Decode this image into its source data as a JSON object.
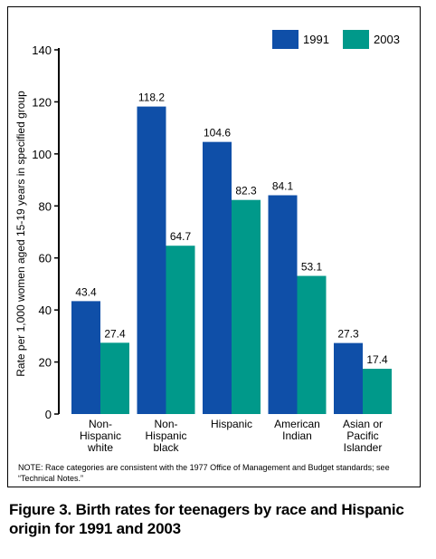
{
  "chart_data": {
    "type": "bar",
    "categories": [
      [
        "Non-",
        "Hispanic",
        "white"
      ],
      [
        "Non-",
        "Hispanic",
        "black"
      ],
      [
        "Hispanic"
      ],
      [
        "American",
        "Indian"
      ],
      [
        "Asian or",
        "Pacific",
        "Islander"
      ]
    ],
    "series": [
      {
        "name": "1991",
        "color": "#0f4fa8",
        "values": [
          43.4,
          118.2,
          104.6,
          84.1,
          27.3
        ]
      },
      {
        "name": "2003",
        "color": "#00998a",
        "values": [
          27.4,
          64.7,
          82.3,
          53.1,
          17.4
        ]
      }
    ],
    "ylabel": "Rate per 1,000 women aged 15-19 years in specified group",
    "ylim": [
      0,
      140
    ],
    "yticks": [
      0,
      20,
      40,
      60,
      80,
      100,
      120,
      140
    ],
    "legend_position": "top-right",
    "grid": false
  },
  "note": "NOTE: Race categories are consistent with the 1977 Office of Management and Budget standards; see “Technical Notes.”",
  "caption": "Figure 3. Birth rates for teenagers by race and Hispanic origin for 1991 and 2003"
}
